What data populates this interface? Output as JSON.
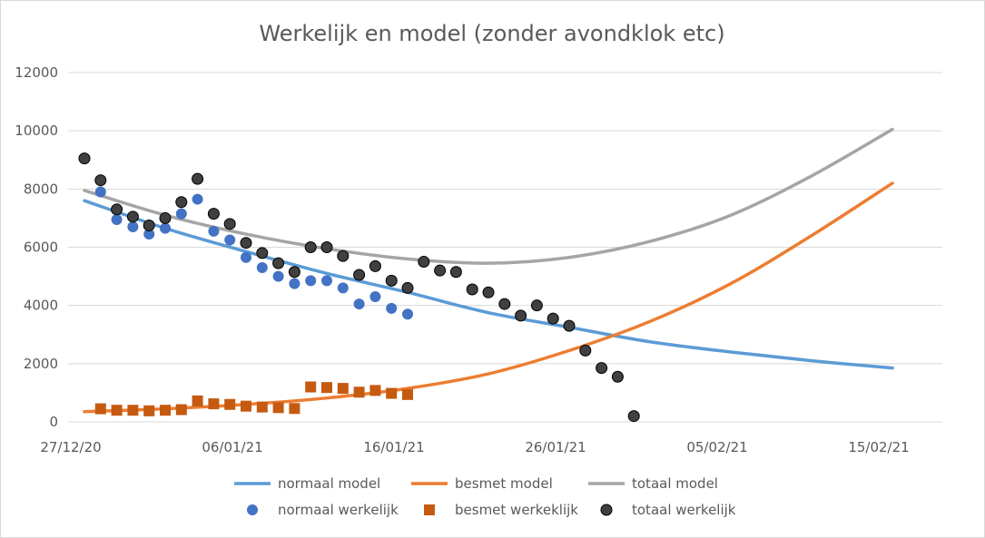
{
  "chart_data": {
    "type": "line",
    "title": "Werkelijk en model (zonder avondklok etc)",
    "xlabel": "",
    "ylabel": "",
    "x_range": [
      "2020-12-27",
      "2021-02-15"
    ],
    "ylim": [
      0,
      12000
    ],
    "y_ticks": [
      0,
      2000,
      4000,
      6000,
      8000,
      10000,
      12000
    ],
    "y_tick_labels": [
      "0",
      "2000",
      "4000",
      "6000",
      "8000",
      "10000",
      "12000"
    ],
    "x_ticks": [
      0,
      10,
      20,
      30,
      40,
      50
    ],
    "x_tick_labels": [
      "27/12/20",
      "06/01/21",
      "16/01/21",
      "26/01/21",
      "05/02/21",
      "15/02/21"
    ],
    "x_unit": "days since 27/12/20",
    "grid": true,
    "legend_position": "bottom",
    "series": [
      {
        "name": "normaal model",
        "kind": "line",
        "color": "#5b9bd5",
        "points": [
          [
            0,
            7600
          ],
          [
            5,
            6650
          ],
          [
            10,
            5850
          ],
          [
            15,
            5100
          ],
          [
            20,
            4450
          ],
          [
            25,
            3750
          ],
          [
            30,
            3250
          ],
          [
            35,
            2750
          ],
          [
            40,
            2400
          ],
          [
            45,
            2100
          ],
          [
            50,
            1850
          ]
        ]
      },
      {
        "name": "besmet model",
        "kind": "line",
        "color": "#ed7d31",
        "points": [
          [
            0,
            350
          ],
          [
            5,
            450
          ],
          [
            10,
            600
          ],
          [
            15,
            820
          ],
          [
            20,
            1150
          ],
          [
            25,
            1650
          ],
          [
            30,
            2450
          ],
          [
            35,
            3450
          ],
          [
            40,
            4750
          ],
          [
            45,
            6400
          ],
          [
            50,
            8200
          ]
        ]
      },
      {
        "name": "totaal model",
        "kind": "line",
        "color": "#a5a5a5",
        "points": [
          [
            0,
            7950
          ],
          [
            5,
            7100
          ],
          [
            10,
            6450
          ],
          [
            15,
            5950
          ],
          [
            20,
            5600
          ],
          [
            25,
            5450
          ],
          [
            30,
            5650
          ],
          [
            35,
            6200
          ],
          [
            40,
            7100
          ],
          [
            45,
            8450
          ],
          [
            50,
            10050
          ]
        ]
      },
      {
        "name": "normaal werkelijk",
        "kind": "scatter",
        "marker": "circle",
        "color": "#4472c4",
        "points": [
          [
            1,
            7900
          ],
          [
            2,
            6950
          ],
          [
            3,
            6700
          ],
          [
            4,
            6450
          ],
          [
            5,
            6650
          ],
          [
            6,
            7150
          ],
          [
            7,
            7650
          ],
          [
            8,
            6550
          ],
          [
            9,
            6250
          ],
          [
            10,
            5650
          ],
          [
            11,
            5300
          ],
          [
            12,
            5000
          ],
          [
            13,
            4750
          ],
          [
            14,
            4850
          ],
          [
            15,
            4850
          ],
          [
            16,
            4600
          ],
          [
            17,
            4050
          ],
          [
            18,
            4300
          ],
          [
            19,
            3900
          ],
          [
            20,
            3700
          ]
        ]
      },
      {
        "name": "besmet werkeklijk",
        "kind": "scatter",
        "marker": "square",
        "color": "#c55a11",
        "points": [
          [
            1,
            450
          ],
          [
            2,
            400
          ],
          [
            3,
            400
          ],
          [
            4,
            380
          ],
          [
            5,
            400
          ],
          [
            6,
            420
          ],
          [
            7,
            720
          ],
          [
            8,
            620
          ],
          [
            9,
            600
          ],
          [
            10,
            540
          ],
          [
            11,
            510
          ],
          [
            12,
            490
          ],
          [
            13,
            460
          ],
          [
            14,
            1200
          ],
          [
            15,
            1180
          ],
          [
            16,
            1150
          ],
          [
            17,
            1020
          ],
          [
            18,
            1080
          ],
          [
            19,
            980
          ],
          [
            20,
            940
          ]
        ]
      },
      {
        "name": "totaal werkelijk",
        "kind": "scatter",
        "marker": "circle",
        "color": "#404040",
        "points": [
          [
            0,
            9050
          ],
          [
            1,
            8300
          ],
          [
            2,
            7300
          ],
          [
            3,
            7050
          ],
          [
            4,
            6750
          ],
          [
            5,
            7000
          ],
          [
            6,
            7550
          ],
          [
            7,
            8350
          ],
          [
            8,
            7150
          ],
          [
            9,
            6800
          ],
          [
            10,
            6150
          ],
          [
            11,
            5800
          ],
          [
            12,
            5450
          ],
          [
            13,
            5150
          ],
          [
            14,
            6000
          ],
          [
            15,
            6000
          ],
          [
            16,
            5700
          ],
          [
            17,
            5050
          ],
          [
            18,
            5350
          ],
          [
            19,
            4850
          ],
          [
            20,
            4600
          ],
          [
            21,
            5500
          ],
          [
            22,
            5200
          ],
          [
            23,
            5150
          ],
          [
            24,
            4550
          ],
          [
            25,
            4450
          ],
          [
            26,
            4050
          ],
          [
            27,
            3650
          ],
          [
            28,
            4000
          ],
          [
            29,
            3550
          ],
          [
            30,
            3300
          ],
          [
            31,
            2450
          ],
          [
            32,
            1850
          ],
          [
            33,
            1550
          ],
          [
            34,
            200
          ]
        ]
      }
    ]
  }
}
